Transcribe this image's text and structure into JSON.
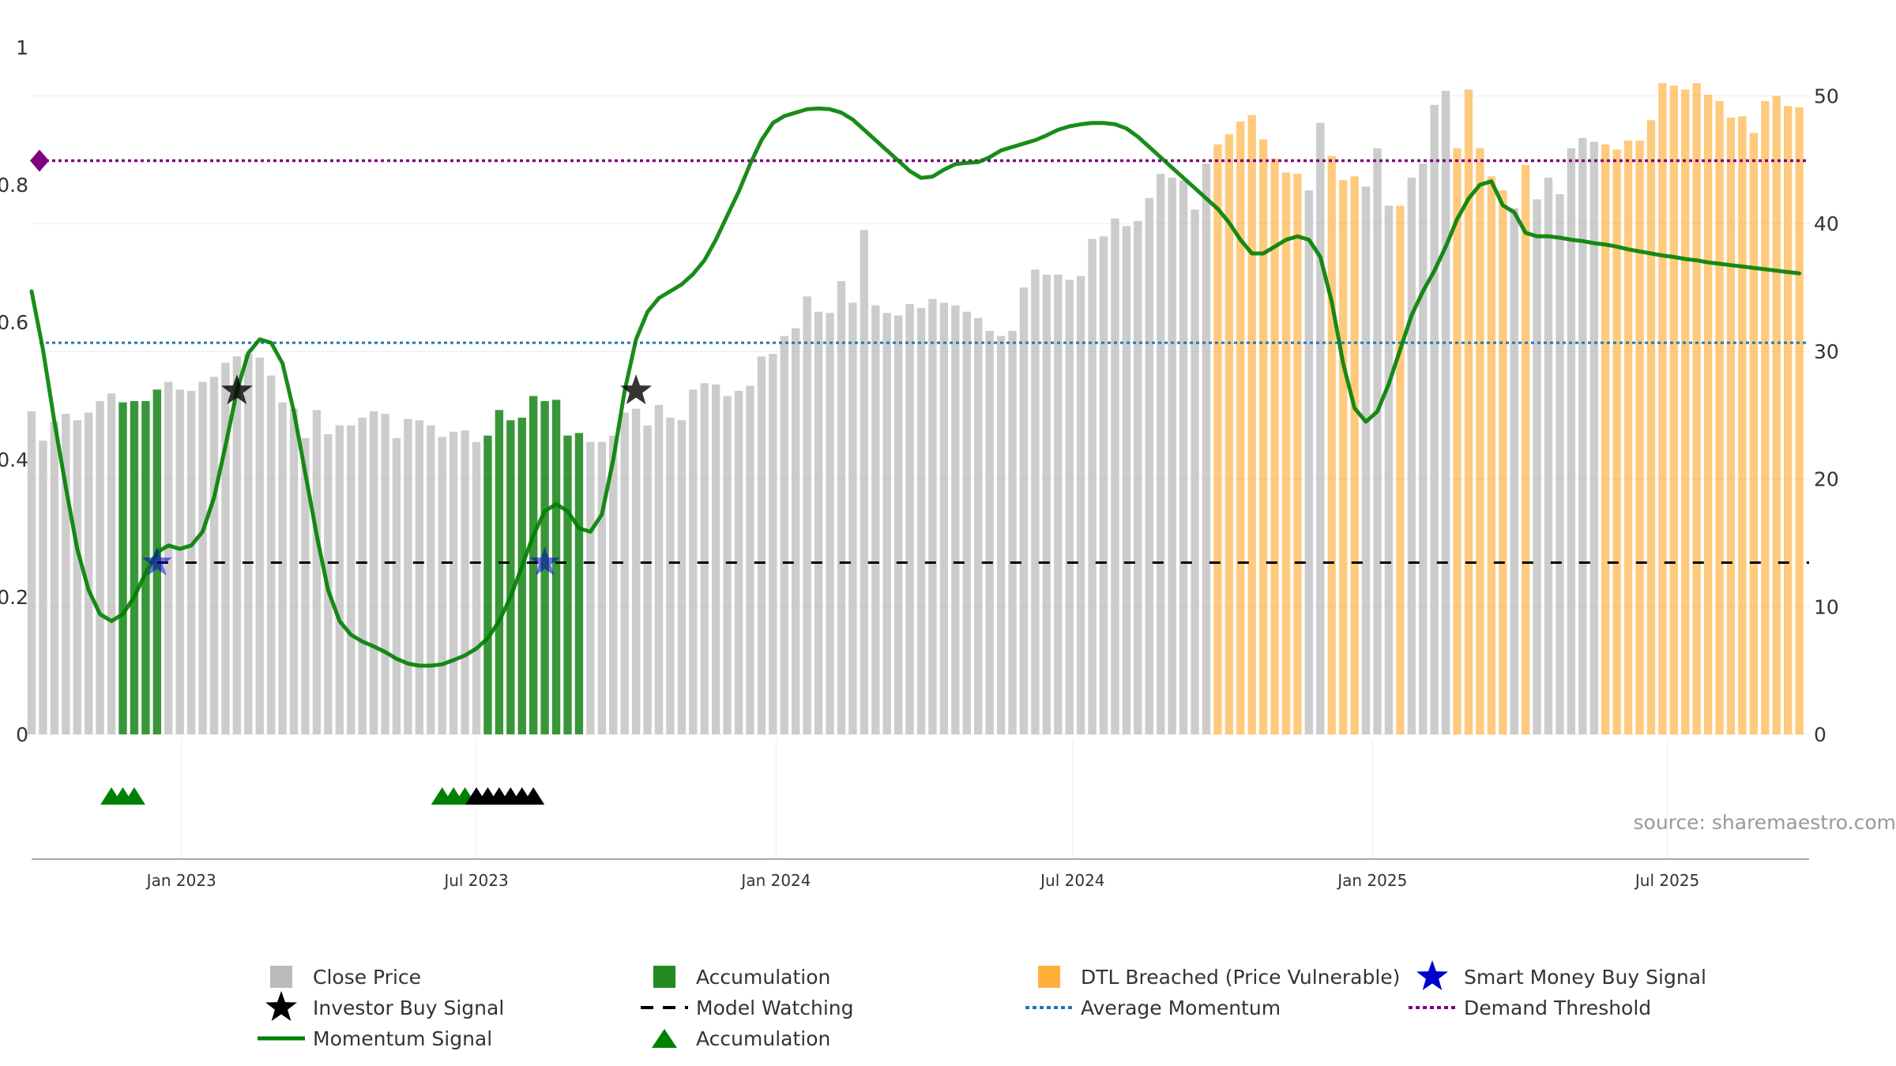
{
  "chart_data": {
    "type": "bar",
    "source": "source: sharemaestro.com",
    "y_left": {
      "ticks": [
        0,
        0.2,
        0.4,
        0.6,
        0.8,
        1
      ],
      "tick_labels": [
        "0",
        "0.2",
        "0.4",
        "0.6",
        "0.8",
        "1"
      ],
      "range": [
        0,
        1
      ]
    },
    "y_right": {
      "ticks": [
        0,
        10,
        20,
        30,
        40,
        50
      ],
      "range": [
        0,
        53.8
      ]
    },
    "x_range": [
      "2022-10-01",
      "2025-09-26"
    ],
    "x_ticks": [
      {
        "date": "2023-01-01",
        "label": "Jan 2023"
      },
      {
        "date": "2023-07-01",
        "label": "Jul 2023"
      },
      {
        "date": "2024-01-01",
        "label": "Jan 2024"
      },
      {
        "date": "2024-07-01",
        "label": "Jul 2024"
      },
      {
        "date": "2025-01-01",
        "label": "Jan 2025"
      },
      {
        "date": "2025-07-01",
        "label": "Jul 2025"
      }
    ],
    "bars": {
      "first_week": "2022-10-01",
      "interval_days": 7,
      "close_price": [
        25.3,
        23.0,
        24.5,
        25.1,
        24.6,
        25.2,
        26.1,
        26.7,
        26.0,
        26.1,
        26.1,
        27.0,
        27.6,
        27.0,
        26.9,
        27.6,
        28.0,
        29.1,
        29.6,
        29.8,
        29.5,
        28.1,
        26.0,
        25.5,
        23.2,
        25.4,
        23.5,
        24.2,
        24.2,
        24.8,
        25.3,
        25.1,
        23.2,
        24.7,
        24.6,
        24.2,
        23.3,
        23.7,
        23.8,
        22.9,
        23.4,
        25.4,
        24.6,
        24.8,
        26.5,
        26.1,
        26.2,
        23.4,
        23.6,
        22.9,
        22.9,
        23.4,
        25.2,
        25.5,
        24.2,
        25.8,
        24.8,
        24.6,
        27.0,
        27.5,
        27.4,
        26.5,
        26.9,
        27.3,
        29.6,
        29.8,
        31.2,
        31.8,
        34.3,
        33.1,
        33.0,
        35.5,
        33.8,
        39.5,
        33.6,
        33.0,
        32.8,
        33.7,
        33.4,
        34.1,
        33.8,
        33.6,
        33.1,
        32.6,
        31.6,
        31.2,
        31.6,
        35.0,
        36.4,
        36.0,
        36.0,
        35.6,
        35.9,
        38.8,
        39.0,
        40.4,
        39.8,
        40.2,
        42.0,
        43.9,
        43.6,
        43.4,
        41.1,
        44.7,
        46.2,
        47.0,
        48.0,
        48.5,
        46.6,
        45.1,
        44.0,
        43.9,
        42.6,
        47.9,
        45.3,
        43.4,
        43.7,
        42.9,
        45.9,
        41.4,
        41.4,
        43.6,
        44.7,
        49.3,
        50.4,
        45.9,
        50.5,
        45.9,
        43.7,
        42.6,
        41.2,
        44.6,
        41.9,
        43.6,
        42.3,
        45.9,
        46.7,
        46.4,
        46.2,
        45.8,
        46.5,
        46.5,
        48.1,
        51.0,
        50.8,
        50.5,
        51.0,
        50.1,
        49.6,
        48.3,
        48.4,
        47.1,
        49.6,
        50.0,
        49.2,
        49.1
      ],
      "category": [
        "C",
        "C",
        "C",
        "C",
        "C",
        "C",
        "C",
        "C",
        "A",
        "A",
        "A",
        "A",
        "C",
        "C",
        "C",
        "C",
        "C",
        "C",
        "C",
        "C",
        "C",
        "C",
        "C",
        "C",
        "C",
        "C",
        "C",
        "C",
        "C",
        "C",
        "C",
        "C",
        "C",
        "C",
        "C",
        "C",
        "C",
        "C",
        "C",
        "C",
        "A",
        "A",
        "A",
        "A",
        "A",
        "A",
        "A",
        "A",
        "A",
        "C",
        "C",
        "C",
        "C",
        "C",
        "C",
        "C",
        "C",
        "C",
        "C",
        "C",
        "C",
        "C",
        "C",
        "C",
        "C",
        "C",
        "C",
        "C",
        "C",
        "C",
        "C",
        "C",
        "C",
        "C",
        "C",
        "C",
        "C",
        "C",
        "C",
        "C",
        "C",
        "C",
        "C",
        "C",
        "C",
        "C",
        "C",
        "C",
        "C",
        "C",
        "C",
        "C",
        "C",
        "C",
        "C",
        "C",
        "C",
        "C",
        "C",
        "C",
        "C",
        "C",
        "C",
        "C",
        "D",
        "D",
        "D",
        "D",
        "D",
        "D",
        "D",
        "D",
        "C",
        "C",
        "D",
        "D",
        "D",
        "C",
        "C",
        "C",
        "D",
        "C",
        "C",
        "C",
        "C",
        "D",
        "D",
        "D",
        "D",
        "D",
        "C",
        "D",
        "C",
        "C",
        "C",
        "C",
        "C",
        "C",
        "D",
        "D",
        "D",
        "D",
        "D",
        "D",
        "D",
        "D",
        "D",
        "D",
        "D",
        "D",
        "D",
        "D",
        "D",
        "D",
        "D",
        "D",
        "D",
        "D",
        "D",
        "D"
      ]
    },
    "momentum_signal": {
      "points": [
        [
          "2022-10-01",
          0.645
        ],
        [
          "2022-10-08",
          0.56
        ],
        [
          "2022-10-15",
          0.455
        ],
        [
          "2022-10-22",
          0.36
        ],
        [
          "2022-10-29",
          0.27
        ],
        [
          "2022-11-05",
          0.21
        ],
        [
          "2022-11-12",
          0.175
        ],
        [
          "2022-11-19",
          0.165
        ],
        [
          "2022-11-26",
          0.175
        ],
        [
          "2022-12-03",
          0.2
        ],
        [
          "2022-12-10",
          0.235
        ],
        [
          "2022-12-17",
          0.265
        ],
        [
          "2022-12-24",
          0.275
        ],
        [
          "2022-12-31",
          0.27
        ],
        [
          "2023-01-07",
          0.275
        ],
        [
          "2023-01-14",
          0.295
        ],
        [
          "2023-01-21",
          0.345
        ],
        [
          "2023-01-28",
          0.42
        ],
        [
          "2023-02-04",
          0.5
        ],
        [
          "2023-02-11",
          0.555
        ],
        [
          "2023-02-18",
          0.575
        ],
        [
          "2023-02-25",
          0.57
        ],
        [
          "2023-03-04",
          0.54
        ],
        [
          "2023-03-11",
          0.47
        ],
        [
          "2023-03-18",
          0.38
        ],
        [
          "2023-03-25",
          0.29
        ],
        [
          "2023-04-01",
          0.21
        ],
        [
          "2023-04-08",
          0.165
        ],
        [
          "2023-04-15",
          0.145
        ],
        [
          "2023-04-22",
          0.135
        ],
        [
          "2023-04-29",
          0.128
        ],
        [
          "2023-05-06",
          0.12
        ],
        [
          "2023-05-13",
          0.11
        ],
        [
          "2023-05-20",
          0.103
        ],
        [
          "2023-05-27",
          0.1
        ],
        [
          "2023-06-03",
          0.1
        ],
        [
          "2023-06-10",
          0.102
        ],
        [
          "2023-06-17",
          0.108
        ],
        [
          "2023-06-24",
          0.115
        ],
        [
          "2023-07-01",
          0.125
        ],
        [
          "2023-07-08",
          0.14
        ],
        [
          "2023-07-15",
          0.165
        ],
        [
          "2023-07-22",
          0.2
        ],
        [
          "2023-07-29",
          0.245
        ],
        [
          "2023-08-05",
          0.29
        ],
        [
          "2023-08-12",
          0.325
        ],
        [
          "2023-08-19",
          0.335
        ],
        [
          "2023-08-26",
          0.325
        ],
        [
          "2023-09-02",
          0.3
        ],
        [
          "2023-09-09",
          0.295
        ],
        [
          "2023-09-16",
          0.32
        ],
        [
          "2023-09-23",
          0.4
        ],
        [
          "2023-09-30",
          0.5
        ],
        [
          "2023-10-07",
          0.575
        ],
        [
          "2023-10-14",
          0.615
        ],
        [
          "2023-10-21",
          0.635
        ],
        [
          "2023-10-28",
          0.645
        ],
        [
          "2023-11-04",
          0.655
        ],
        [
          "2023-11-11",
          0.67
        ],
        [
          "2023-11-18",
          0.69
        ],
        [
          "2023-11-25",
          0.72
        ],
        [
          "2023-12-02",
          0.755
        ],
        [
          "2023-12-09",
          0.79
        ],
        [
          "2023-12-16",
          0.83
        ],
        [
          "2023-12-23",
          0.865
        ],
        [
          "2023-12-30",
          0.89
        ],
        [
          "2024-01-06",
          0.9
        ],
        [
          "2024-01-13",
          0.905
        ],
        [
          "2024-01-20",
          0.91
        ],
        [
          "2024-01-27",
          0.911
        ],
        [
          "2024-02-03",
          0.91
        ],
        [
          "2024-02-10",
          0.905
        ],
        [
          "2024-02-17",
          0.895
        ],
        [
          "2024-02-24",
          0.88
        ],
        [
          "2024-03-02",
          0.865
        ],
        [
          "2024-03-09",
          0.85
        ],
        [
          "2024-03-16",
          0.835
        ],
        [
          "2024-03-23",
          0.82
        ],
        [
          "2024-03-30",
          0.81
        ],
        [
          "2024-04-06",
          0.812
        ],
        [
          "2024-04-13",
          0.822
        ],
        [
          "2024-04-20",
          0.83
        ],
        [
          "2024-04-27",
          0.832
        ],
        [
          "2024-05-04",
          0.833
        ],
        [
          "2024-05-11",
          0.84
        ],
        [
          "2024-05-18",
          0.85
        ],
        [
          "2024-05-25",
          0.855
        ],
        [
          "2024-06-01",
          0.86
        ],
        [
          "2024-06-08",
          0.865
        ],
        [
          "2024-06-15",
          0.872
        ],
        [
          "2024-06-22",
          0.88
        ],
        [
          "2024-06-29",
          0.885
        ],
        [
          "2024-07-06",
          0.888
        ],
        [
          "2024-07-13",
          0.89
        ],
        [
          "2024-07-20",
          0.89
        ],
        [
          "2024-07-27",
          0.888
        ],
        [
          "2024-08-03",
          0.882
        ],
        [
          "2024-08-10",
          0.87
        ],
        [
          "2024-08-17",
          0.855
        ],
        [
          "2024-08-24",
          0.84
        ],
        [
          "2024-08-31",
          0.825
        ],
        [
          "2024-09-07",
          0.81
        ],
        [
          "2024-09-14",
          0.795
        ],
        [
          "2024-09-21",
          0.78
        ],
        [
          "2024-09-28",
          0.765
        ],
        [
          "2024-10-05",
          0.745
        ],
        [
          "2024-10-12",
          0.72
        ],
        [
          "2024-10-19",
          0.7
        ],
        [
          "2024-10-26",
          0.7
        ],
        [
          "2024-11-02",
          0.71
        ],
        [
          "2024-11-09",
          0.72
        ],
        [
          "2024-11-16",
          0.725
        ],
        [
          "2024-11-23",
          0.72
        ],
        [
          "2024-11-30",
          0.695
        ],
        [
          "2024-12-07",
          0.63
        ],
        [
          "2024-12-14",
          0.54
        ],
        [
          "2024-12-21",
          0.475
        ],
        [
          "2024-12-28",
          0.455
        ],
        [
          "2025-01-04",
          0.47
        ],
        [
          "2025-01-11",
          0.51
        ],
        [
          "2025-01-18",
          0.56
        ],
        [
          "2025-01-25",
          0.61
        ],
        [
          "2025-02-01",
          0.645
        ],
        [
          "2025-02-08",
          0.675
        ],
        [
          "2025-02-15",
          0.71
        ],
        [
          "2025-02-22",
          0.75
        ],
        [
          "2025-03-01",
          0.78
        ],
        [
          "2025-03-08",
          0.8
        ],
        [
          "2025-03-15",
          0.805
        ],
        [
          "2025-03-22",
          0.77
        ],
        [
          "2025-03-29",
          0.76
        ],
        [
          "2025-04-05",
          0.73
        ],
        [
          "2025-04-12",
          0.725
        ],
        [
          "2025-04-19",
          0.725
        ],
        [
          "2025-04-26",
          0.723
        ],
        [
          "2025-05-03",
          0.72
        ],
        [
          "2025-05-10",
          0.718
        ],
        [
          "2025-05-17",
          0.715
        ],
        [
          "2025-05-24",
          0.713
        ],
        [
          "2025-05-31",
          0.71
        ],
        [
          "2025-06-07",
          0.706
        ],
        [
          "2025-06-14",
          0.703
        ],
        [
          "2025-06-21",
          0.7
        ],
        [
          "2025-06-28",
          0.697
        ],
        [
          "2025-07-05",
          0.695
        ],
        [
          "2025-07-12",
          0.692
        ],
        [
          "2025-07-19",
          0.69
        ],
        [
          "2025-07-26",
          0.687
        ],
        [
          "2025-08-02",
          0.685
        ],
        [
          "2025-08-09",
          0.683
        ],
        [
          "2025-08-16",
          0.681
        ],
        [
          "2025-08-23",
          0.679
        ],
        [
          "2025-08-30",
          0.677
        ],
        [
          "2025-09-06",
          0.675
        ],
        [
          "2025-09-13",
          0.673
        ],
        [
          "2025-09-20",
          0.671
        ]
      ]
    },
    "average_momentum": 0.57,
    "demand_threshold": 0.835,
    "model_watching": {
      "start": "2022-12-17",
      "end": "2025-09-26",
      "value": 0.25
    },
    "investor_buy_signals": [
      [
        "2023-02-04",
        0.5
      ],
      [
        "2023-10-07",
        0.5
      ]
    ],
    "smart_money_buy_signals": [
      [
        "2022-12-17",
        0.25
      ],
      [
        "2023-08-12",
        0.25
      ]
    ],
    "accumulation_markers": [
      {
        "date": "2022-11-19",
        "color": "green"
      },
      {
        "date": "2022-11-26",
        "color": "green"
      },
      {
        "date": "2022-12-03",
        "color": "green"
      },
      {
        "date": "2023-06-10",
        "color": "green"
      },
      {
        "date": "2023-06-17",
        "color": "green"
      },
      {
        "date": "2023-06-24",
        "color": "green"
      },
      {
        "date": "2023-07-01",
        "color": "black"
      },
      {
        "date": "2023-07-08",
        "color": "black"
      },
      {
        "date": "2023-07-15",
        "color": "black"
      },
      {
        "date": "2023-07-22",
        "color": "black"
      },
      {
        "date": "2023-07-29",
        "color": "black"
      },
      {
        "date": "2023-08-05",
        "color": "black"
      }
    ],
    "legend": [
      {
        "label": "Close Price",
        "symbol": "square",
        "color": "#bbbbbb"
      },
      {
        "label": "Accumulation",
        "symbol": "square",
        "color": "#228b22"
      },
      {
        "label": "DTL Breached (Price Vulnerable)",
        "symbol": "square",
        "color": "#ffa726"
      },
      {
        "label": "Smart Money Buy Signal",
        "symbol": "star",
        "color": "#0000cc"
      },
      {
        "label": "Investor Buy Signal",
        "symbol": "star",
        "color": "#000000"
      },
      {
        "label": "Model Watching",
        "symbol": "dash",
        "color": "#000000"
      },
      {
        "label": "Average Momentum",
        "symbol": "dot",
        "color": "#1f77b4"
      },
      {
        "label": "Demand Threshold",
        "symbol": "dot",
        "color": "#800080"
      },
      {
        "label": "Momentum Signal",
        "symbol": "line",
        "color": "#008000"
      },
      {
        "label": "Accumulation",
        "symbol": "triangle",
        "color": "#008000"
      }
    ],
    "colors": {
      "close": "#bbbbbb",
      "accumulation": "#228b22",
      "dtl": "#ffa726",
      "momentum": "#008000",
      "avg_momentum": "#1f77b4",
      "demand": "#800080",
      "watching": "#000000",
      "smart_money": "#0000cc",
      "investor": "#000000"
    }
  }
}
